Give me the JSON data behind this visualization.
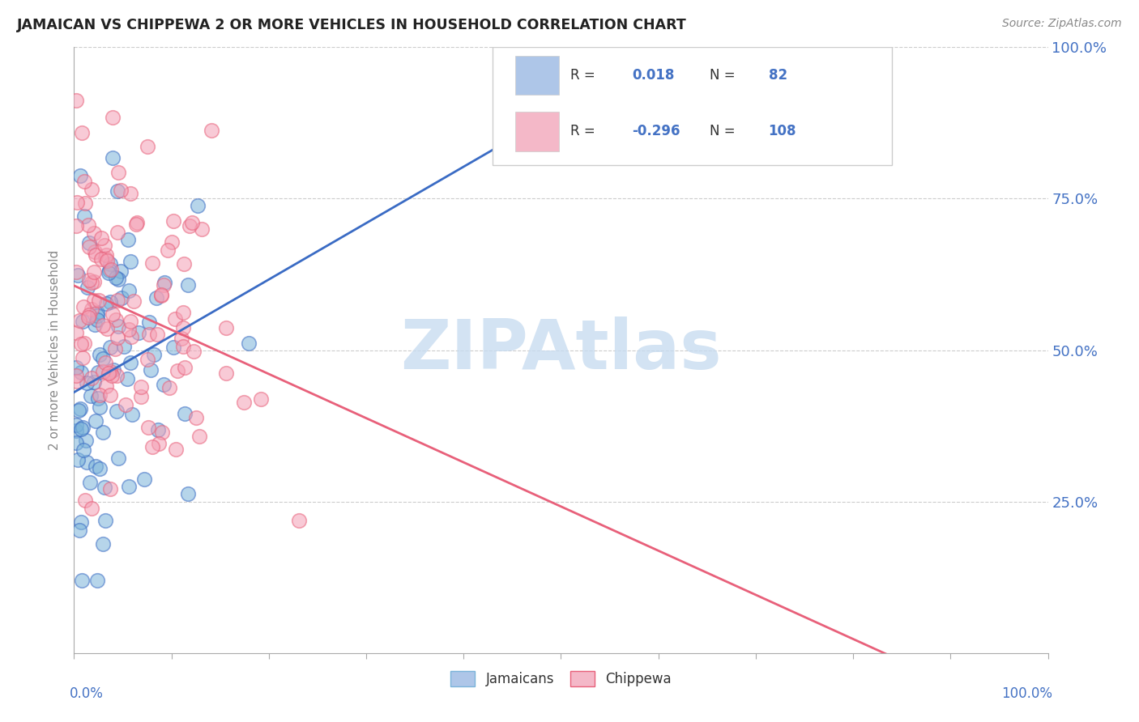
{
  "title": "JAMAICAN VS CHIPPEWA 2 OR MORE VEHICLES IN HOUSEHOLD CORRELATION CHART",
  "source": "Source: ZipAtlas.com",
  "ylabel": "2 or more Vehicles in Household",
  "jamaican_R": 0.018,
  "jamaican_N": 82,
  "chippewa_R": -0.296,
  "chippewa_N": 108,
  "jamaican_dot_color": "#7ab3d9",
  "chippewa_dot_color": "#f4a0b5",
  "jamaican_line_color": "#3a6bc4",
  "chippewa_line_color": "#e8607a",
  "watermark": "ZIPAtlas",
  "watermark_color": "#c8dcf0",
  "legend_box_color": "#ffffff",
  "legend_border_color": "#cccccc",
  "right_axis_color": "#4472c4",
  "title_color": "#222222",
  "source_color": "#888888",
  "ylabel_color": "#888888",
  "grid_color": "#cccccc",
  "background_color": "#ffffff",
  "xlim": [
    0.0,
    1.0
  ],
  "ylim": [
    0.0,
    1.0
  ],
  "ytick_positions": [
    0.25,
    0.5,
    0.75,
    1.0
  ],
  "ytick_labels": [
    "25.0%",
    "50.0%",
    "75.0%",
    "100.0%"
  ]
}
